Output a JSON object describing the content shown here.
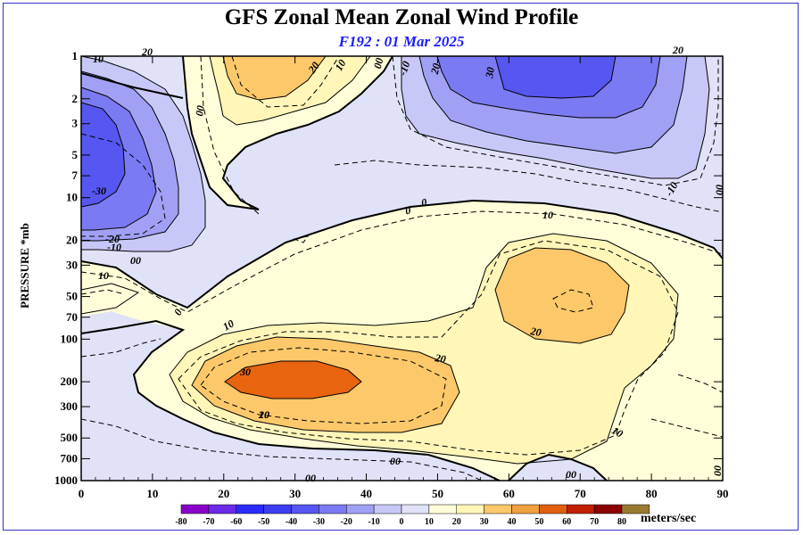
{
  "chart_data": {
    "type": "contour",
    "title": "GFS Zonal Mean Zonal Wind Profile",
    "subtitle": "F192 : 01 Mar 2025",
    "ylabel": "PRESSURE *mb",
    "xlim": [
      0,
      90
    ],
    "x_ticks": [
      0,
      10,
      20,
      30,
      40,
      50,
      60,
      70,
      80,
      90
    ],
    "y_scale": "log",
    "ylim": [
      1000,
      1
    ],
    "y_ticks": [
      1,
      2,
      3,
      5,
      7,
      10,
      20,
      30,
      50,
      70,
      100,
      200,
      300,
      500,
      700,
      1000
    ],
    "colorbar": {
      "levels": [
        -80,
        -70,
        -60,
        -50,
        -40,
        -30,
        -20,
        -10,
        0,
        10,
        20,
        30,
        40,
        50,
        60,
        70,
        80
      ],
      "colors": [
        "#8b00c8",
        "#6a2ae8",
        "#2a2aff",
        "#3d3df0",
        "#5656f0",
        "#7a7af2",
        "#a0a0f5",
        "#c8c8f8",
        "#e0e2f8",
        "#fffed8",
        "#fff6b8",
        "#fdc86a",
        "#f0a040",
        "#e06010",
        "#c02000",
        "#8b0000",
        "#9a7a30"
      ],
      "unit": "meters/sec"
    },
    "features": [
      {
        "label": "30",
        "center_lat": 32,
        "center_p": 200,
        "sign": "westerly"
      },
      {
        "label": "20",
        "center_lat": 67,
        "center_p": 50,
        "sign": "westerly"
      },
      {
        "label": "20",
        "center_lat": 30,
        "center_p": 1,
        "sign": "westerly"
      },
      {
        "label": "-30",
        "center_lat": 68,
        "center_p": 2,
        "sign": "easterly"
      },
      {
        "label": "-30",
        "center_lat": 1,
        "center_p": 5,
        "sign": "easterly"
      }
    ],
    "contour_labels": [
      "20",
      "10",
      "20",
      "10",
      "00",
      "-10",
      "20",
      "30",
      "20",
      "00",
      "-10",
      "00",
      "-30",
      "-20",
      "-10",
      "00",
      "0",
      "0",
      "10",
      "10",
      "0",
      "20",
      "10",
      "30",
      "20",
      "20",
      "10",
      "10",
      "00",
      "00",
      "00",
      "00"
    ]
  }
}
